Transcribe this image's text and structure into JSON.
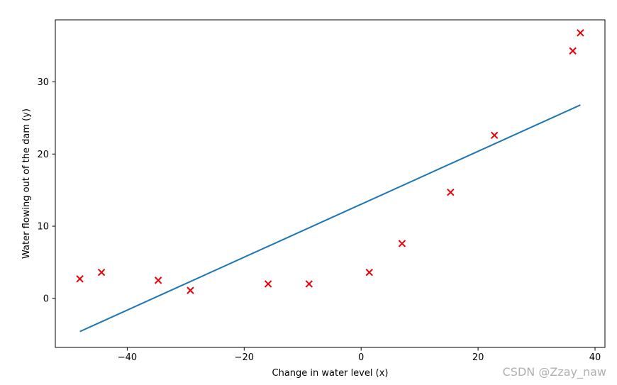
{
  "chart_data": {
    "type": "scatter",
    "title": "",
    "xlabel": "Change in water level (x)",
    "ylabel": "Water flowing out of the dam (y)",
    "xlim": [
      -52.3,
      41.7
    ],
    "ylim": [
      -6.8,
      38.6
    ],
    "xticks": [
      -40,
      -20,
      0,
      20,
      40
    ],
    "xtick_labels": [
      "−40",
      "−20",
      "0",
      "20",
      "40"
    ],
    "yticks": [
      0,
      10,
      20,
      30
    ],
    "ytick_labels": [
      "0",
      "10",
      "20",
      "30"
    ],
    "grid": false,
    "legend": "none",
    "scatter_points": [
      {
        "x": -48.1,
        "y": 2.7
      },
      {
        "x": -44.4,
        "y": 3.6
      },
      {
        "x": -34.7,
        "y": 2.5
      },
      {
        "x": -29.2,
        "y": 1.1
      },
      {
        "x": -15.9,
        "y": 2.0
      },
      {
        "x": -8.9,
        "y": 2.0
      },
      {
        "x": 1.4,
        "y": 3.6
      },
      {
        "x": 7.0,
        "y": 7.6
      },
      {
        "x": 15.3,
        "y": 14.7
      },
      {
        "x": 22.8,
        "y": 22.6
      },
      {
        "x": 36.2,
        "y": 34.3
      },
      {
        "x": 37.5,
        "y": 36.8
      }
    ],
    "fit_line": {
      "x": [
        -48.1,
        37.5
      ],
      "y": [
        -4.6,
        26.8
      ]
    },
    "colors": {
      "scatter": "#e8000b",
      "line": "#1f77b4",
      "axes": "#000000"
    },
    "marker": "x"
  },
  "watermark": "CSDN @Zzay_naw"
}
